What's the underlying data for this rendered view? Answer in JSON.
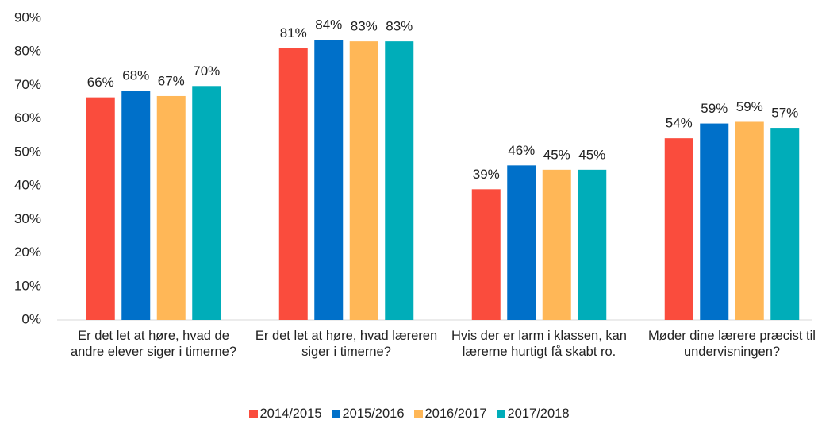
{
  "chart_data": {
    "type": "bar",
    "categories": [
      "Er det let at høre, hvad de andre elever siger i timerne?",
      "Er det let at høre, hvad læreren siger i timerne?",
      "Hvis der er larm i klassen, kan lærerne hurtigt få skabt ro.",
      "Møder dine lærere præcist til undervisningen?"
    ],
    "series": [
      {
        "name": "2014/2015",
        "color": "#fa4c3d",
        "values": [
          66.4,
          81.1,
          39.0,
          54.2
        ],
        "value_labels": [
          "66%",
          "81%",
          "39%",
          "54%"
        ]
      },
      {
        "name": "2015/2016",
        "color": "#0070c9",
        "values": [
          68.4,
          83.6,
          46.1,
          58.6
        ],
        "value_labels": [
          "68%",
          "84%",
          "46%",
          "59%"
        ]
      },
      {
        "name": "2016/2017",
        "color": "#ffb757",
        "values": [
          66.8,
          83.1,
          44.8,
          59.1
        ],
        "value_labels": [
          "67%",
          "83%",
          "45%",
          "59%"
        ]
      },
      {
        "name": "2017/2018",
        "color": "#00adb9",
        "values": [
          69.8,
          83.1,
          44.8,
          57.3
        ],
        "value_labels": [
          "70%",
          "83%",
          "45%",
          "57%"
        ]
      }
    ],
    "ylim": [
      0,
      90
    ],
    "yticks": [
      {
        "value": 0,
        "label": "0%"
      },
      {
        "value": 10,
        "label": "10%"
      },
      {
        "value": 20,
        "label": "20%"
      },
      {
        "value": 30,
        "label": "30%"
      },
      {
        "value": 40,
        "label": "40%"
      },
      {
        "value": 50,
        "label": "50%"
      },
      {
        "value": 60,
        "label": "60%"
      },
      {
        "value": 70,
        "label": "70%"
      },
      {
        "value": 80,
        "label": "80%"
      },
      {
        "value": 90,
        "label": "90%"
      }
    ],
    "grid": false,
    "legend": "bottom"
  }
}
